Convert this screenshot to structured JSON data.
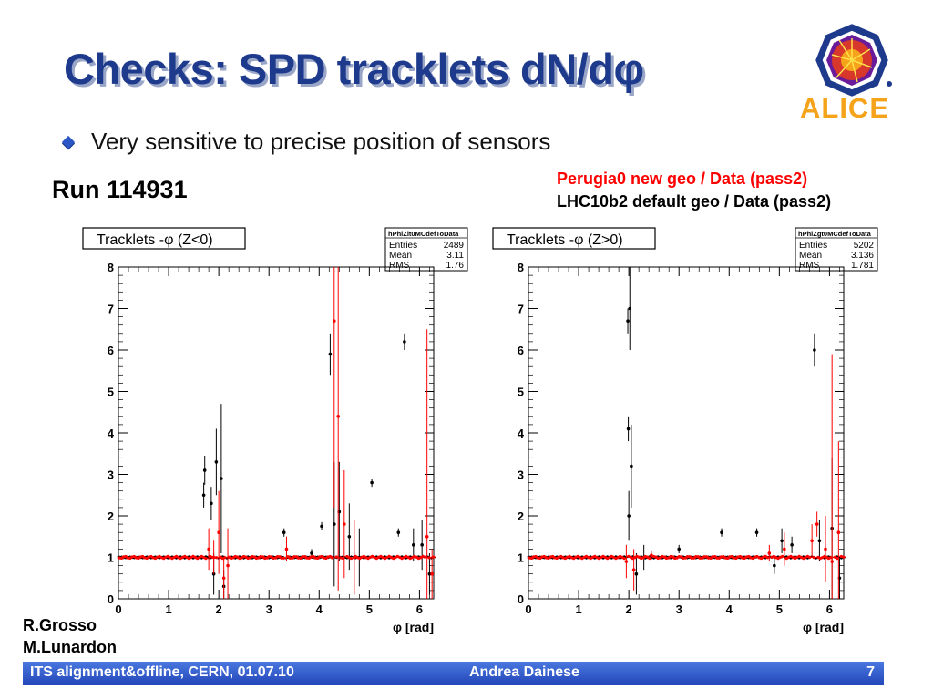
{
  "slide": {
    "title": "Checks: SPD tracklets dN/dφ",
    "bullet": "Very sensitive to precise position of sensors",
    "run_label": "Run 114931",
    "legend_red": "Perugia0 new geo / Data (pass2)",
    "legend_black": "LHC10b2 default geo / Data (pass2)",
    "author1": "R.Grosso",
    "author2": "M.Lunardon",
    "logo_text": "ALICE",
    "colors": {
      "title": "#1e3a8c",
      "red_series": "#ff0000",
      "black_series": "#000000",
      "footer": "#2346b8",
      "logo_orange": "#f5a31a"
    }
  },
  "footer": {
    "left": "ITS alignment&offline, CERN, 01.07.10",
    "center": "Andrea Dainese",
    "page": "7"
  },
  "chart_data": [
    {
      "type": "scatter",
      "title": "Tracklets -φ (Z<0)",
      "xlabel": "φ [rad]",
      "ylabel": "",
      "xlim": [
        0,
        6.283
      ],
      "ylim": [
        0,
        8
      ],
      "xticks": [
        "0",
        "1",
        "2",
        "3",
        "4",
        "5",
        "6"
      ],
      "yticks": [
        "0",
        "1",
        "2",
        "3",
        "4",
        "5",
        "6",
        "7",
        "8"
      ],
      "stats": {
        "name": "hPhiZlt0MCdefToData",
        "Entries": "2489",
        "Mean": "3.11",
        "RMS": "1.76"
      },
      "series": [
        {
          "color": "#000000",
          "baseline": 1.0,
          "points": [
            [
              1.72,
              3.1,
              0.35
            ],
            [
              1.7,
              2.5,
              0.3
            ],
            [
              1.85,
              2.3,
              0.4
            ],
            [
              1.95,
              3.3,
              0.8
            ],
            [
              2.05,
              2.9,
              1.8
            ],
            [
              1.9,
              0.6,
              0.5
            ],
            [
              2.1,
              0.3,
              0.4
            ],
            [
              4.22,
              5.9,
              0.5
            ],
            [
              4.3,
              1.8,
              1.5
            ],
            [
              4.4,
              2.1,
              1.2
            ],
            [
              4.6,
              1.5,
              0.8
            ],
            [
              4.8,
              1.0,
              0.7
            ],
            [
              5.05,
              2.8,
              0.1
            ],
            [
              5.7,
              6.2,
              0.2
            ],
            [
              6.05,
              1.3,
              0.6
            ],
            [
              6.2,
              0.6,
              0.5
            ],
            [
              3.3,
              1.6,
              0.1
            ],
            [
              3.85,
              1.1,
              0.1
            ],
            [
              4.05,
              1.75,
              0.1
            ],
            [
              5.58,
              1.6,
              0.1
            ],
            [
              5.88,
              1.3,
              0.4
            ]
          ]
        },
        {
          "color": "#ff0000",
          "baseline": 1.0,
          "points": [
            [
              1.8,
              1.2,
              0.5
            ],
            [
              2.0,
              1.6,
              1.0
            ],
            [
              2.1,
              0.5,
              0.5
            ],
            [
              2.18,
              0.8,
              0.9
            ],
            [
              4.3,
              6.7,
              4.5
            ],
            [
              4.38,
              4.4,
              4.2
            ],
            [
              4.5,
              1.8,
              1.3
            ],
            [
              4.7,
              1.0,
              0.9
            ],
            [
              6.15,
              1.5,
              5.0
            ],
            [
              6.25,
              0.6,
              0.6
            ],
            [
              1.9,
              1.0,
              0.4
            ],
            [
              3.35,
              1.2,
              0.3
            ]
          ]
        }
      ]
    },
    {
      "type": "scatter",
      "title": "Tracklets -φ (Z>0)",
      "xlabel": "φ [rad]",
      "ylabel": "",
      "xlim": [
        0,
        6.283
      ],
      "ylim": [
        0,
        8
      ],
      "xticks": [
        "0",
        "1",
        "2",
        "3",
        "4",
        "5",
        "6"
      ],
      "yticks": [
        "0",
        "1",
        "2",
        "3",
        "4",
        "5",
        "6",
        "7",
        "8"
      ],
      "stats": {
        "name": "hPhiZgt0MCdefToData",
        "Entries": "5202",
        "Mean": "3.136",
        "RMS": "1.781"
      },
      "series": [
        {
          "color": "#000000",
          "baseline": 1.0,
          "points": [
            [
              1.98,
              6.7,
              0.3
            ],
            [
              2.02,
              7.0,
              1.0
            ],
            [
              1.99,
              4.1,
              0.3
            ],
            [
              2.05,
              3.2,
              1.0
            ],
            [
              2.0,
              2.0,
              0.6
            ],
            [
              2.15,
              0.6,
              0.5
            ],
            [
              2.3,
              1.0,
              0.3
            ],
            [
              5.7,
              6.0,
              0.4
            ],
            [
              5.8,
              1.4,
              0.5
            ],
            [
              6.05,
              1.7,
              1.7
            ],
            [
              6.2,
              0.5,
              0.5
            ],
            [
              3.85,
              1.6,
              0.1
            ],
            [
              4.55,
              1.6,
              0.1
            ],
            [
              5.05,
              1.4,
              0.3
            ],
            [
              5.25,
              1.3,
              0.2
            ],
            [
              3.0,
              1.2,
              0.1
            ],
            [
              4.9,
              0.8,
              0.2
            ]
          ]
        },
        {
          "color": "#ff0000",
          "baseline": 1.0,
          "points": [
            [
              1.95,
              0.9,
              0.4
            ],
            [
              2.1,
              0.7,
              0.5
            ],
            [
              5.1,
              1.2,
              0.4
            ],
            [
              5.75,
              1.8,
              0.3
            ],
            [
              5.92,
              1.2,
              0.8
            ],
            [
              6.05,
              0.9,
              5.0
            ],
            [
              6.18,
              1.6,
              2.2
            ],
            [
              2.45,
              1.05,
              0.1
            ],
            [
              4.8,
              1.1,
              0.2
            ],
            [
              5.65,
              1.4,
              0.4
            ]
          ]
        }
      ]
    }
  ]
}
